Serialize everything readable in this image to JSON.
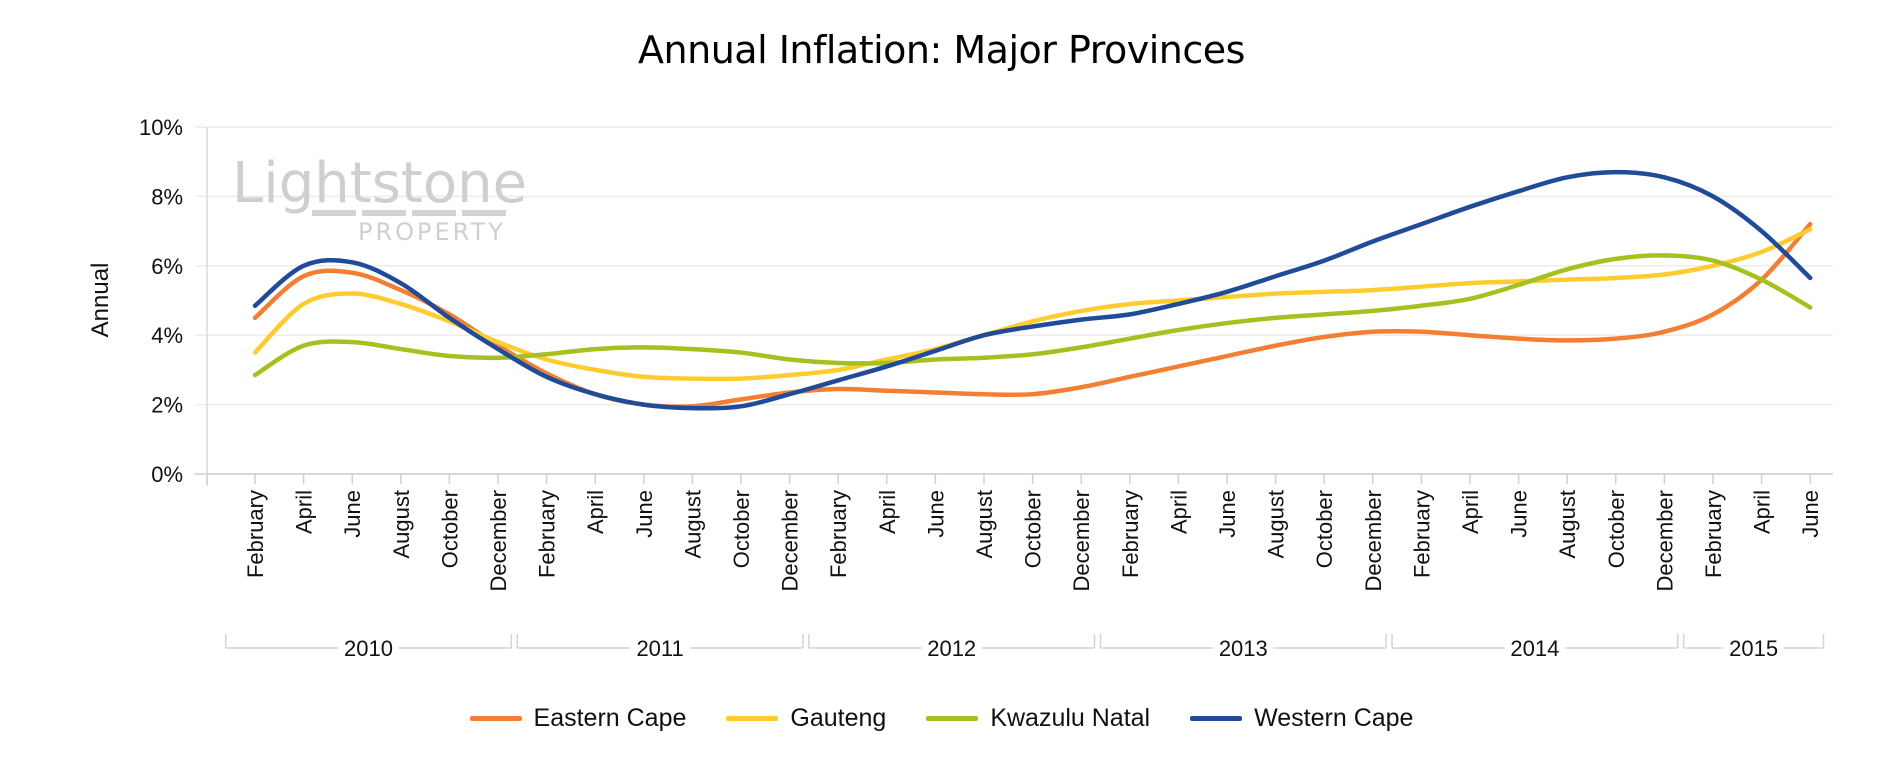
{
  "chart_data": {
    "type": "line",
    "title": "Annual Inflation: Major Provinces",
    "xlabel": "",
    "ylabel": "Annual",
    "ylim": [
      0,
      10
    ],
    "yticks": [
      "0%",
      "2%",
      "4%",
      "6%",
      "8%",
      "10%"
    ],
    "ytick_values": [
      0,
      2,
      4,
      6,
      8,
      10
    ],
    "grid": true,
    "smooth": true,
    "legend_position": "bottom",
    "watermark": {
      "main": "Lightstone",
      "sub": "PROPERTY"
    },
    "year_groups": [
      {
        "label": "2010",
        "count": 6
      },
      {
        "label": "2011",
        "count": 6
      },
      {
        "label": "2012",
        "count": 6
      },
      {
        "label": "2013",
        "count": 6
      },
      {
        "label": "2014",
        "count": 6
      },
      {
        "label": "2015",
        "count": 3
      }
    ],
    "x": [
      "February",
      "April",
      "June",
      "August",
      "October",
      "December",
      "February",
      "April",
      "June",
      "August",
      "October",
      "December",
      "February",
      "April",
      "June",
      "August",
      "October",
      "December",
      "February",
      "April",
      "June",
      "August",
      "October",
      "December",
      "February",
      "April",
      "June",
      "August",
      "October",
      "December",
      "February",
      "April",
      "June"
    ],
    "series": [
      {
        "name": "Eastern Cape",
        "color": "#f47f32",
        "values": [
          4.5,
          5.7,
          5.8,
          5.3,
          4.6,
          3.7,
          2.9,
          2.3,
          2.0,
          1.95,
          2.15,
          2.35,
          2.45,
          2.4,
          2.35,
          2.3,
          2.3,
          2.5,
          2.8,
          3.1,
          3.4,
          3.7,
          3.95,
          4.1,
          4.1,
          4.0,
          3.9,
          3.85,
          3.9,
          4.1,
          4.6,
          5.6,
          7.2
        ]
      },
      {
        "name": "Gauteng",
        "color": "#fecc2f",
        "values": [
          3.5,
          4.9,
          5.2,
          4.9,
          4.4,
          3.8,
          3.3,
          3.0,
          2.8,
          2.75,
          2.75,
          2.85,
          3.0,
          3.3,
          3.6,
          4.0,
          4.4,
          4.7,
          4.9,
          5.0,
          5.1,
          5.2,
          5.25,
          5.3,
          5.4,
          5.5,
          5.55,
          5.6,
          5.65,
          5.75,
          6.0,
          6.4,
          7.05
        ]
      },
      {
        "name": "Kwazulu Natal",
        "color": "#a4c11f",
        "values": [
          2.85,
          3.7,
          3.8,
          3.6,
          3.4,
          3.35,
          3.45,
          3.6,
          3.65,
          3.6,
          3.5,
          3.3,
          3.2,
          3.2,
          3.3,
          3.35,
          3.45,
          3.65,
          3.9,
          4.15,
          4.35,
          4.5,
          4.6,
          4.7,
          4.85,
          5.05,
          5.45,
          5.9,
          6.2,
          6.3,
          6.15,
          5.6,
          4.8
        ]
      },
      {
        "name": "Western Cape",
        "color": "#1f4b99",
        "values": [
          4.85,
          6.0,
          6.1,
          5.5,
          4.5,
          3.6,
          2.8,
          2.3,
          2.0,
          1.9,
          1.95,
          2.3,
          2.7,
          3.1,
          3.55,
          4.0,
          4.25,
          4.45,
          4.6,
          4.9,
          5.25,
          5.7,
          6.15,
          6.7,
          7.2,
          7.7,
          8.15,
          8.55,
          8.7,
          8.55,
          8.0,
          7.0,
          5.65
        ]
      }
    ]
  }
}
